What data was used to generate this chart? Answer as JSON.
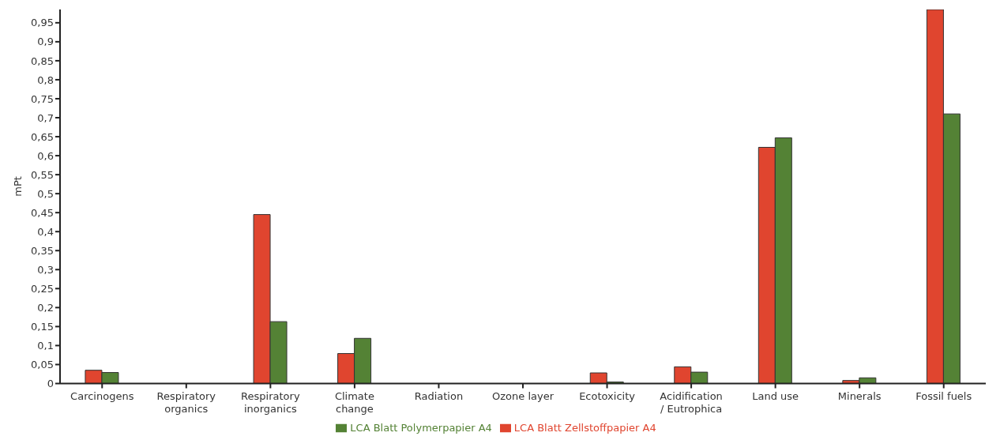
{
  "chart_data": {
    "type": "bar",
    "ylabel": "mPt",
    "categories": [
      "Carcinogens",
      "Respiratory organics",
      "Respiratory inorganics",
      "Climate change",
      "Radiation",
      "Ozone layer",
      "Ecotoxicity",
      "Acidification / Eutrophica",
      "Land use",
      "Minerals",
      "Fossil fuels"
    ],
    "series": [
      {
        "name": "LCA Blatt Zellstoffpapier A4",
        "color": "#e0452f",
        "values": [
          0.035,
          0,
          0.445,
          0.079,
          0,
          0,
          0.028,
          0.044,
          0.622,
          0.008,
          0.985
        ]
      },
      {
        "name": "LCA Blatt Polymerpapier A4",
        "color": "#548235",
        "values": [
          0.029,
          0,
          0.163,
          0.119,
          0,
          0,
          0.004,
          0.03,
          0.647,
          0.015,
          0.71
        ]
      }
    ],
    "ylim": [
      0,
      0.985
    ],
    "yticks": [
      0,
      {
        "value": 0.05,
        "label": "0,05"
      },
      {
        "value": 0.1,
        "label": "0,1"
      },
      {
        "value": 0.15,
        "label": "0,15"
      },
      {
        "value": 0.2,
        "label": "0,2"
      },
      {
        "value": 0.25,
        "label": "0,25"
      },
      {
        "value": 0.3,
        "label": "0,3"
      },
      {
        "value": 0.35,
        "label": "0,35"
      },
      {
        "value": 0.4,
        "label": "0,4"
      },
      {
        "value": 0.45,
        "label": "0,45"
      },
      {
        "value": 0.5,
        "label": "0,5"
      },
      {
        "value": 0.55,
        "label": "0,55"
      },
      {
        "value": 0.6,
        "label": "0,6"
      },
      {
        "value": 0.65,
        "label": "0,65"
      },
      {
        "value": 0.7,
        "label": "0,7"
      },
      {
        "value": 0.75,
        "label": "0,75"
      },
      {
        "value": 0.8,
        "label": "0,8"
      },
      {
        "value": 0.85,
        "label": "0,85"
      },
      {
        "value": 0.9,
        "label": "0,9"
      },
      {
        "value": 0.95,
        "label": "0,95"
      }
    ],
    "grid": false,
    "legend": "bottom"
  }
}
